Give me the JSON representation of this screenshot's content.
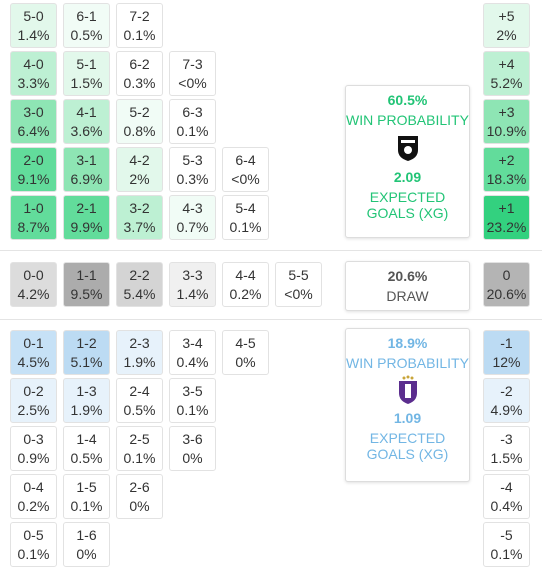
{
  "home": {
    "rows": [
      [
        {
          "score": "5-0",
          "pct": "1.4%",
          "color": "#e2f8eb"
        },
        {
          "score": "6-1",
          "pct": "0.5%",
          "color": "#f1fcf6"
        },
        {
          "score": "7-2",
          "pct": "0.1%",
          "color": "#ffffff"
        }
      ],
      [
        {
          "score": "4-0",
          "pct": "3.3%",
          "color": "#bdf0d3"
        },
        {
          "score": "5-1",
          "pct": "1.5%",
          "color": "#e2f8eb"
        },
        {
          "score": "6-2",
          "pct": "0.3%",
          "color": "#ffffff"
        },
        {
          "score": "7-3",
          "pct": "<0%",
          "color": "#ffffff"
        }
      ],
      [
        {
          "score": "3-0",
          "pct": "6.4%",
          "color": "#8ee5b4"
        },
        {
          "score": "4-1",
          "pct": "3.6%",
          "color": "#bdf0d3"
        },
        {
          "score": "5-2",
          "pct": "0.8%",
          "color": "#f1fcf6"
        },
        {
          "score": "6-3",
          "pct": "0.1%",
          "color": "#ffffff"
        }
      ],
      [
        {
          "score": "2-0",
          "pct": "9.1%",
          "color": "#62dc9b"
        },
        {
          "score": "3-1",
          "pct": "6.9%",
          "color": "#8ee5b4"
        },
        {
          "score": "4-2",
          "pct": "2%",
          "color": "#e2f8eb"
        },
        {
          "score": "5-3",
          "pct": "0.3%",
          "color": "#ffffff"
        },
        {
          "score": "6-4",
          "pct": "<0%",
          "color": "#ffffff"
        }
      ],
      [
        {
          "score": "1-0",
          "pct": "8.7%",
          "color": "#62dc9b"
        },
        {
          "score": "2-1",
          "pct": "9.9%",
          "color": "#62dc9b"
        },
        {
          "score": "3-2",
          "pct": "3.7%",
          "color": "#bdf0d3"
        },
        {
          "score": "4-3",
          "pct": "0.7%",
          "color": "#f1fcf6"
        },
        {
          "score": "5-4",
          "pct": "0.1%",
          "color": "#ffffff"
        }
      ]
    ],
    "margins": [
      {
        "label": "+5",
        "pct": "2%",
        "color": "#e2f8eb"
      },
      {
        "label": "+4",
        "pct": "5.2%",
        "color": "#bdf0d3"
      },
      {
        "label": "+3",
        "pct": "10.9%",
        "color": "#8ee5b4"
      },
      {
        "label": "+2",
        "pct": "18.3%",
        "color": "#62dc9b"
      },
      {
        "label": "+1",
        "pct": "23.2%",
        "color": "#33d17f"
      }
    ],
    "summary": {
      "probability": "60.5%",
      "label": "WIN PROBABILITY",
      "xg": "2.09",
      "xg_label": "EXPECTED GOALS (XG)"
    }
  },
  "draw": {
    "row": [
      {
        "score": "0-0",
        "pct": "4.2%",
        "color": "#dcdcdc"
      },
      {
        "score": "1-1",
        "pct": "9.5%",
        "color": "#acacac"
      },
      {
        "score": "2-2",
        "pct": "5.4%",
        "color": "#d4d4d4"
      },
      {
        "score": "3-3",
        "pct": "1.4%",
        "color": "#f0f0f0"
      },
      {
        "score": "4-4",
        "pct": "0.2%",
        "color": "#ffffff"
      },
      {
        "score": "5-5",
        "pct": "<0%",
        "color": "#ffffff"
      }
    ],
    "margin": {
      "label": "0",
      "pct": "20.6%",
      "color": "#b4b4b4"
    },
    "summary": {
      "probability": "20.6%",
      "label": "DRAW"
    }
  },
  "away": {
    "rows": [
      [
        {
          "score": "0-1",
          "pct": "4.5%",
          "color": "#c6e1f6"
        },
        {
          "score": "1-2",
          "pct": "5.1%",
          "color": "#bcdbf3"
        },
        {
          "score": "2-3",
          "pct": "1.9%",
          "color": "#e7f2fb"
        },
        {
          "score": "3-4",
          "pct": "0.4%",
          "color": "#ffffff"
        },
        {
          "score": "4-5",
          "pct": "0%",
          "color": "#ffffff"
        }
      ],
      [
        {
          "score": "0-2",
          "pct": "2.5%",
          "color": "#e7f2fb"
        },
        {
          "score": "1-3",
          "pct": "1.9%",
          "color": "#e7f2fb"
        },
        {
          "score": "2-4",
          "pct": "0.5%",
          "color": "#ffffff"
        },
        {
          "score": "3-5",
          "pct": "0.1%",
          "color": "#ffffff"
        }
      ],
      [
        {
          "score": "0-3",
          "pct": "0.9%",
          "color": "#ffffff"
        },
        {
          "score": "1-4",
          "pct": "0.5%",
          "color": "#ffffff"
        },
        {
          "score": "2-5",
          "pct": "0.1%",
          "color": "#ffffff"
        },
        {
          "score": "3-6",
          "pct": "0%",
          "color": "#ffffff"
        }
      ],
      [
        {
          "score": "0-4",
          "pct": "0.2%",
          "color": "#ffffff"
        },
        {
          "score": "1-5",
          "pct": "0.1%",
          "color": "#ffffff"
        },
        {
          "score": "2-6",
          "pct": "0%",
          "color": "#ffffff"
        }
      ],
      [
        {
          "score": "0-5",
          "pct": "0.1%",
          "color": "#ffffff"
        },
        {
          "score": "1-6",
          "pct": "0%",
          "color": "#ffffff"
        }
      ]
    ],
    "margins": [
      {
        "label": "-1",
        "pct": "12%",
        "color": "#bcdbf3"
      },
      {
        "label": "-2",
        "pct": "4.9%",
        "color": "#e7f2fb"
      },
      {
        "label": "-3",
        "pct": "1.5%",
        "color": "#ffffff"
      },
      {
        "label": "-4",
        "pct": "0.4%",
        "color": "#ffffff"
      },
      {
        "label": "-5",
        "pct": "0.1%",
        "color": "#ffffff"
      }
    ],
    "summary": {
      "probability": "18.9%",
      "label": "WIN PROBABILITY",
      "xg": "1.09",
      "xg_label": "EXPECTED GOALS (XG)"
    }
  }
}
